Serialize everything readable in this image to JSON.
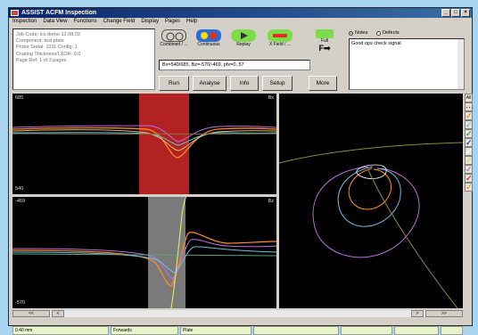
{
  "window": {
    "title": "ASSIST ACFM Inspection"
  },
  "menu": [
    "Inspection",
    "Data View",
    "Functions",
    "Change Field",
    "Display",
    "Pages",
    "Help"
  ],
  "info_lines": [
    "Job Code: lco demo 12.08.03",
    "Component: test plate",
    "Probe Serial: 1011 Config: 1",
    "Coating Thickness/LXOR: 0.0",
    "Page Ref: 1 of 3 pages"
  ],
  "toolbar": {
    "combined_label": "Combined / ...",
    "continuous_label": "Continuous",
    "replay_label": "Replay",
    "xfield_label": "X Field / ...",
    "full_label": "Full"
  },
  "formula": "Bx=540/685, Bz=-570/-469, pfx=0..57",
  "buttons": {
    "run": "Run",
    "analyse": "Analyse",
    "info": "Info",
    "setup": "Setup",
    "more": "More"
  },
  "radios": {
    "notes": "Notes",
    "defects": "Defects"
  },
  "notes_text": "Good ops check signal",
  "plots": {
    "bx": {
      "max": "685",
      "min": "540",
      "channel": "Bx"
    },
    "bz": {
      "max": "-469",
      "min": "-570",
      "channel": "Bz"
    }
  },
  "rail": {
    "all_label": "All"
  },
  "status": [
    "0.40 mm",
    "Forwards",
    "Plate",
    "",
    "",
    "",
    ""
  ],
  "colors": {
    "plot_bg": "#000000",
    "highlight": "#b22222",
    "bz_highlight": "#7a7a7a"
  }
}
